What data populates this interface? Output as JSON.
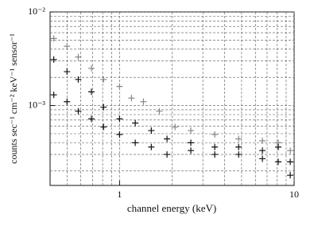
{
  "chart_data": {
    "type": "scatter",
    "x_label": "channel energy (keV)",
    "y_label": "counts sec⁻¹ cm⁻² keV⁻¹ sensor⁻¹",
    "xlog": true,
    "ylog": true,
    "grid": true,
    "xlim": [
      0.4,
      10
    ],
    "ylim": [
      0.00014,
      0.01
    ],
    "xticks": [
      1,
      10
    ],
    "yticks": [
      {
        "value": 0.001,
        "label": "10⁻³"
      },
      {
        "value": 0.01,
        "label": "10⁻²"
      }
    ],
    "xminorticks": [
      0.5,
      0.6,
      0.7,
      0.8,
      0.9,
      2,
      3,
      4,
      5,
      6,
      7,
      8,
      9
    ],
    "yminorticks": [
      0.0002,
      0.0003,
      0.0004,
      0.0005,
      0.0006,
      0.0007,
      0.0008,
      0.0009,
      0.002,
      0.003,
      0.004,
      0.005,
      0.006,
      0.007,
      0.008,
      0.009
    ],
    "series": [
      {
        "color": "#888888",
        "x": [
          0.42,
          0.5,
          0.58,
          0.69,
          0.81,
          1.0,
          1.17,
          1.37,
          1.69,
          2.08,
          2.56,
          3.51,
          4.81,
          6.58,
          8.11,
          9.5
        ],
        "values": [
          0.0052,
          0.0043,
          0.0033,
          0.0025,
          0.0019,
          0.0016,
          0.0012,
          0.0011,
          0.00087,
          0.00059,
          0.00054,
          0.00049,
          0.00044,
          0.00042,
          0.0004,
          0.00033
        ]
      },
      {
        "color": "#111111",
        "x": [
          0.42,
          0.5,
          0.58,
          0.69,
          0.81,
          1.0,
          1.23,
          1.52,
          1.87,
          2.56,
          3.51,
          4.81,
          6.58,
          8.11,
          9.5
        ],
        "values": [
          0.0031,
          0.0023,
          0.0019,
          0.0014,
          0.00096,
          0.00072,
          0.00065,
          0.00054,
          0.00044,
          0.0004,
          0.00036,
          0.00036,
          0.00033,
          0.00036,
          0.00025
        ]
      },
      {
        "color": "#111111",
        "x": [
          0.42,
          0.5,
          0.58,
          0.69,
          0.81,
          1.0,
          1.23,
          1.52,
          1.87,
          2.56,
          3.51,
          4.81,
          6.58,
          8.11,
          9.5
        ],
        "values": [
          0.0013,
          0.0011,
          0.00087,
          0.00072,
          0.00059,
          0.00049,
          0.0004,
          0.00036,
          0.0003,
          0.00033,
          0.0003,
          0.0003,
          0.00027,
          0.00025,
          0.00018
        ]
      }
    ]
  }
}
